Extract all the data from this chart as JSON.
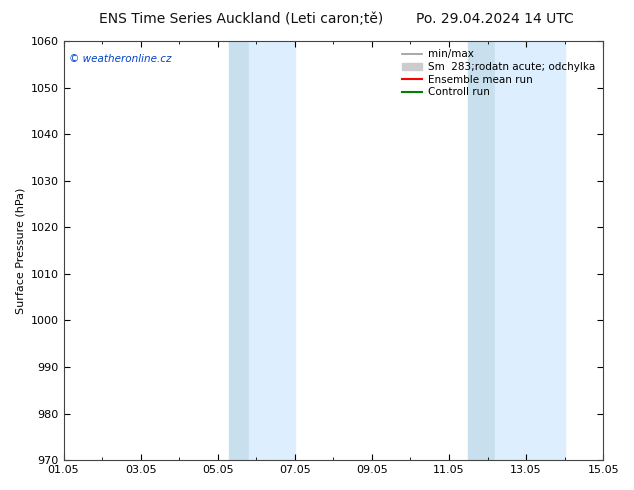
{
  "title_left": "ENS Time Series Auckland (Leti caron;tě)",
  "title_right": "Po. 29.04.2024 14 UTC",
  "ylabel": "Surface Pressure (hPa)",
  "ylim": [
    970,
    1060
  ],
  "yticks": [
    970,
    980,
    990,
    1000,
    1010,
    1020,
    1030,
    1040,
    1050,
    1060
  ],
  "xlim": [
    0,
    14
  ],
  "xtick_labels": [
    "01.05",
    "03.05",
    "05.05",
    "07.05",
    "09.05",
    "11.05",
    "13.05",
    "15.05"
  ],
  "xtick_positions": [
    0,
    2,
    4,
    6,
    8,
    10,
    12,
    14
  ],
  "blue_bands": [
    {
      "start": 4.3,
      "end": 4.8
    },
    {
      "start": 4.8,
      "end": 6.0
    },
    {
      "start": 10.5,
      "end": 11.2
    },
    {
      "start": 11.2,
      "end": 13.0
    }
  ],
  "watermark": "© weatheronline.cz",
  "watermark_color": "#0044cc",
  "legend_entries": [
    {
      "label": "min/max",
      "color": "#999999",
      "lw": 1.2,
      "ls": "-",
      "type": "line"
    },
    {
      "label": "Sm  283;rodatn acute; odchylka",
      "color": "#cccccc",
      "type": "patch"
    },
    {
      "label": "Ensemble mean run",
      "color": "red",
      "lw": 1.5,
      "ls": "-",
      "type": "line"
    },
    {
      "label": "Controll run",
      "color": "green",
      "lw": 1.5,
      "ls": "-",
      "type": "line"
    }
  ],
  "background_color": "#ffffff",
  "plot_bg_color": "#ffffff",
  "blue_band_color_light": "#ddeeff",
  "blue_band_color_dark": "#c8dfee",
  "title_fontsize": 10,
  "tick_fontsize": 8,
  "ylabel_fontsize": 8,
  "legend_fontsize": 7.5
}
